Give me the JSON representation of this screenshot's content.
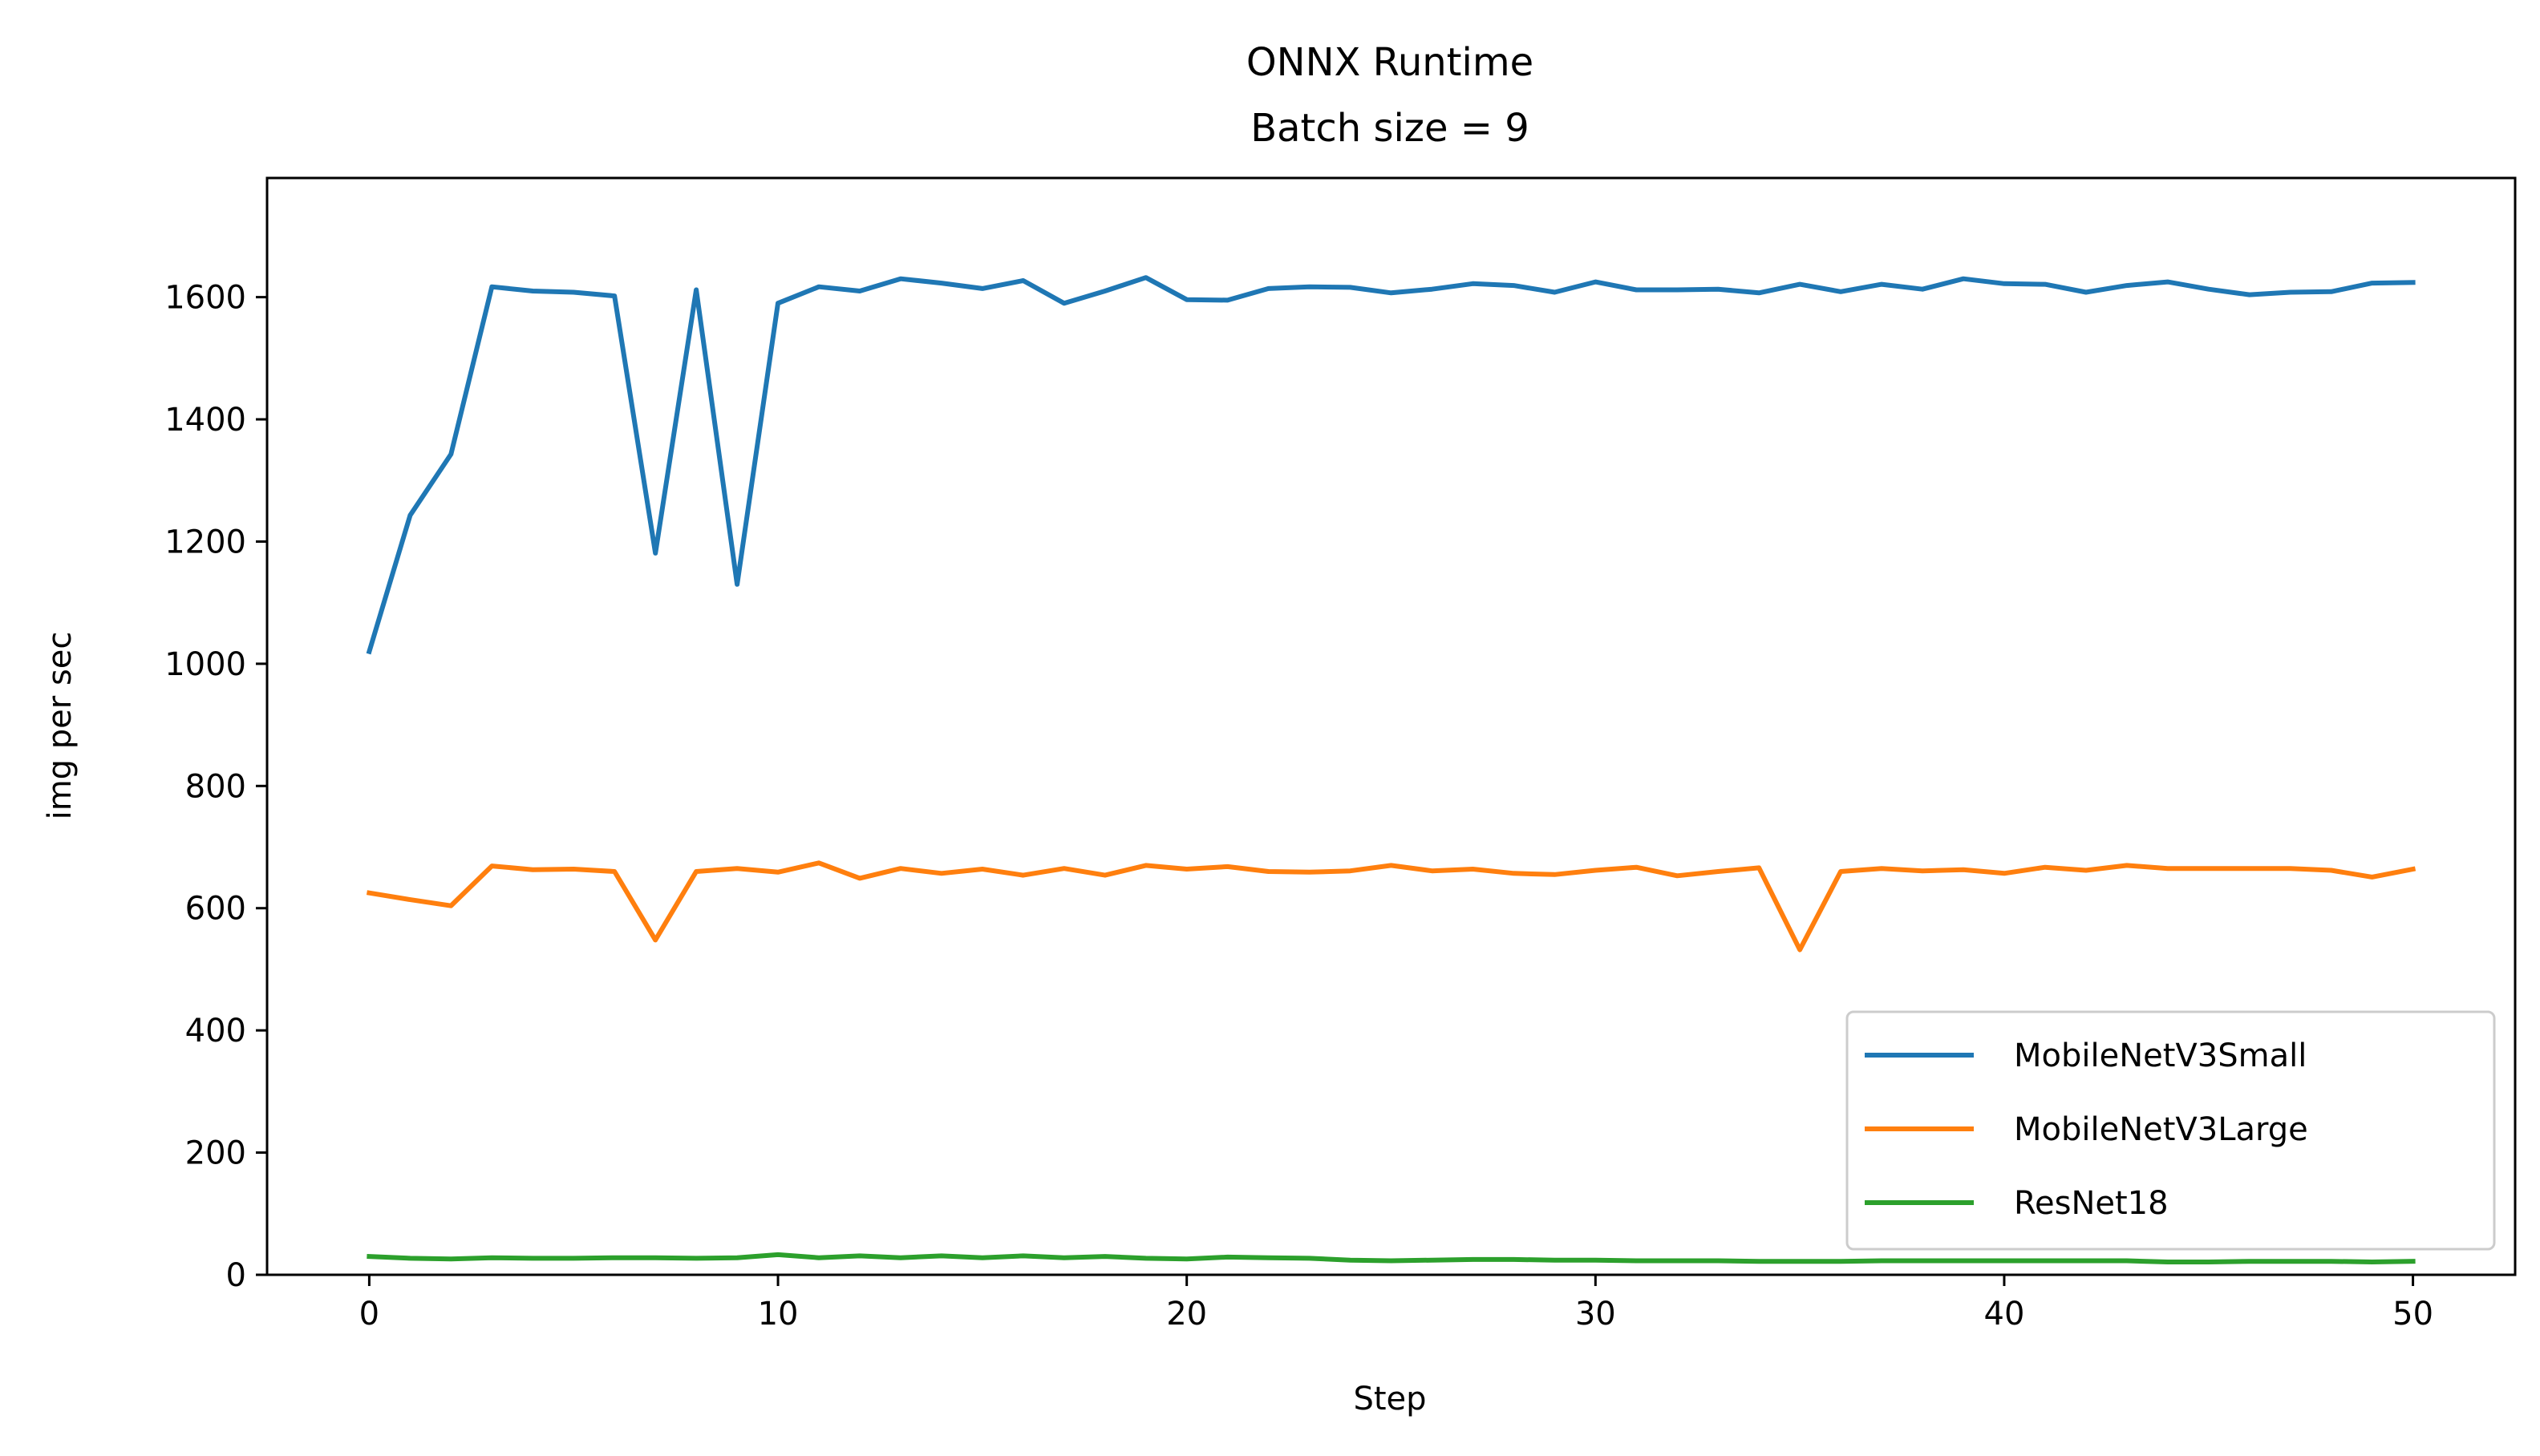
{
  "chart_data": {
    "type": "line",
    "title": "ONNX Runtime",
    "subtitle": "Batch size = 9",
    "xlabel": "Step",
    "ylabel": "img per sec",
    "xlim": [
      -2.5,
      52.5
    ],
    "ylim": [
      0,
      1795
    ],
    "xticks": [
      0,
      10,
      20,
      30,
      40,
      50
    ],
    "yticks": [
      0,
      200,
      400,
      600,
      800,
      1000,
      1200,
      1400,
      1600
    ],
    "grid": false,
    "legend_position": "lower right",
    "x": [
      0,
      1,
      2,
      3,
      4,
      5,
      6,
      7,
      8,
      9,
      10,
      11,
      12,
      13,
      14,
      15,
      16,
      17,
      18,
      19,
      20,
      21,
      22,
      23,
      24,
      25,
      26,
      27,
      28,
      29,
      30,
      31,
      32,
      33,
      34,
      35,
      36,
      37,
      38,
      39,
      40,
      41,
      42,
      43,
      44,
      45,
      46,
      47,
      48,
      49,
      50
    ],
    "series": [
      {
        "name": "MobileNetV3Small",
        "color": "#1f77b4",
        "values": [
          1020,
          1243,
          1343,
          1617,
          1610,
          1608,
          1602,
          1181,
          1612,
          1130,
          1590,
          1617,
          1610,
          1630,
          1623,
          1614,
          1627,
          1590,
          1610,
          1632,
          1596,
          1595,
          1614,
          1617,
          1616,
          1607,
          1613,
          1622,
          1619,
          1608,
          1625,
          1612,
          1612,
          1613,
          1607,
          1621,
          1609,
          1621,
          1613,
          1630,
          1622,
          1621,
          1608,
          1619,
          1625,
          1613,
          1604,
          1608,
          1609,
          1623,
          1624
        ]
      },
      {
        "name": "MobileNetV3Large",
        "color": "#ff7f0e",
        "values": [
          625,
          614,
          604,
          669,
          663,
          664,
          660,
          548,
          660,
          665,
          659,
          674,
          649,
          665,
          657,
          664,
          654,
          665,
          654,
          670,
          664,
          668,
          660,
          659,
          661,
          670,
          661,
          664,
          657,
          655,
          662,
          667,
          653,
          660,
          666,
          532,
          660,
          665,
          661,
          663,
          657,
          667,
          662,
          670,
          665,
          665,
          665,
          665,
          662,
          651,
          664
        ]
      },
      {
        "name": "ResNet18",
        "color": "#2ca02c",
        "values": [
          30,
          27,
          26,
          28,
          27,
          27,
          28,
          28,
          27,
          28,
          33,
          28,
          31,
          28,
          31,
          28,
          31,
          28,
          30,
          27,
          26,
          29,
          28,
          27,
          24,
          23,
          24,
          25,
          25,
          24,
          24,
          23,
          23,
          23,
          22,
          22,
          22,
          23,
          23,
          23,
          23,
          23,
          23,
          23,
          21,
          21,
          22,
          22,
          22,
          21,
          22
        ]
      }
    ]
  }
}
